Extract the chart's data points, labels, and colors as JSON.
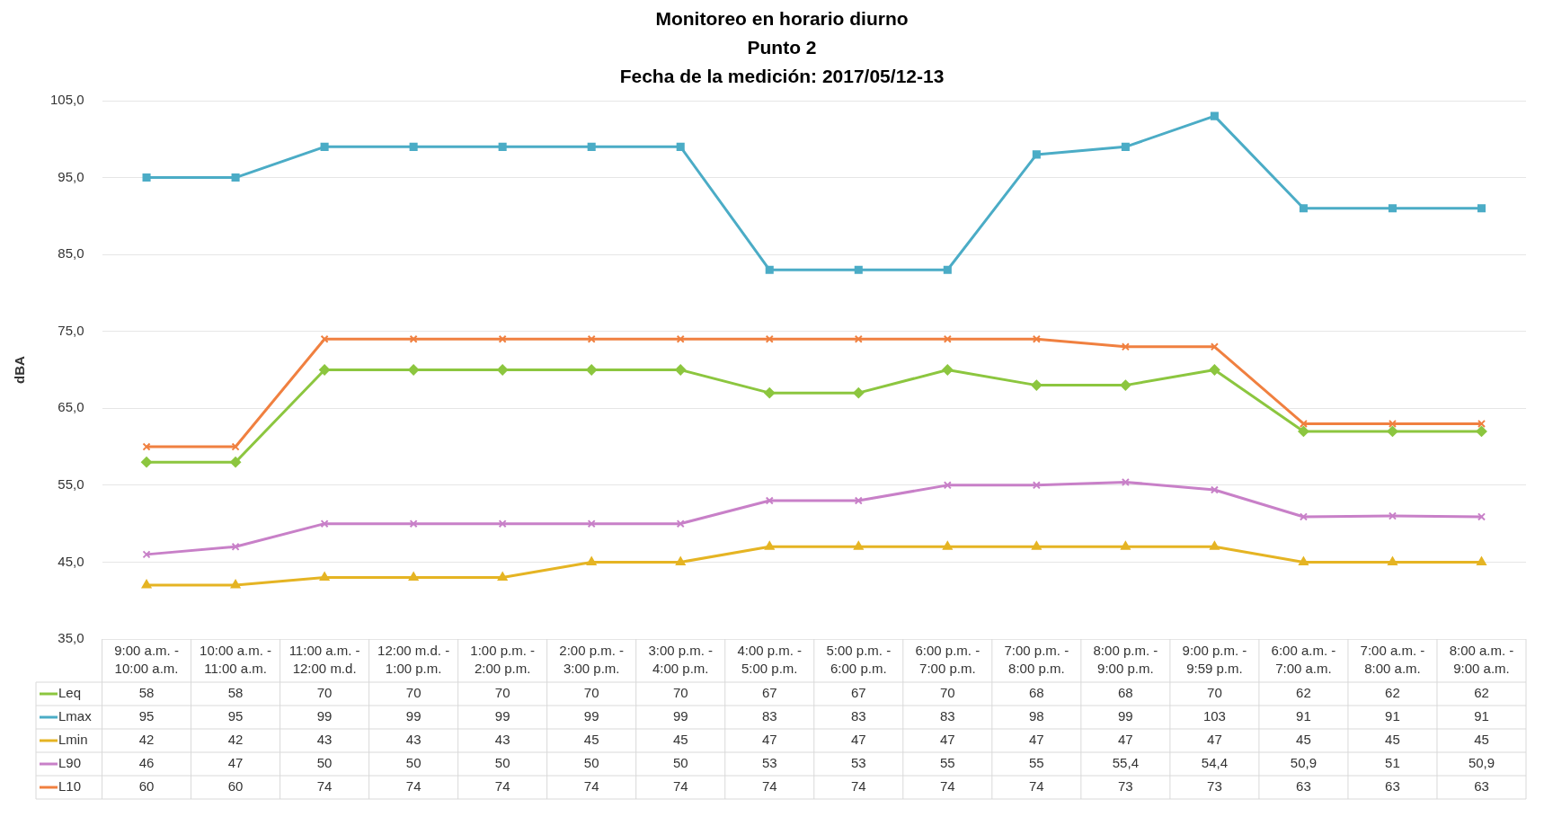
{
  "chart_data": {
    "type": "line",
    "title": [
      "Monitoreo en horario diurno",
      "Punto 2",
      "Fecha de la medición: 2017/05/12-13"
    ],
    "ylabel": "dBA",
    "categories": [
      "9:00 a.m. -\n10:00 a.m.",
      "10:00 a.m. -\n11:00 a.m.",
      "11:00 a.m. -\n12:00 m.d.",
      "12:00 m.d. -\n1:00 p.m.",
      "1:00 p.m. -\n2:00 p.m.",
      "2:00 p.m. -\n3:00 p.m.",
      "3:00 p.m. -\n4:00 p.m.",
      "4:00 p.m. -\n5:00 p.m.",
      "5:00 p.m. -\n6:00 p.m.",
      "6:00 p.m. -\n7:00 p.m.",
      "7:00 p.m. -\n8:00 p.m.",
      "8:00 p.m. -\n9:00 p.m.",
      "9:00 p.m. -\n9:59 p.m.",
      "6:00 a.m. -\n7:00 a.m.",
      "7:00 a.m. -\n8:00 a.m.",
      "8:00 a.m. -\n9:00 a.m."
    ],
    "series": [
      {
        "name": "Leq",
        "color": "#8cc63f",
        "marker": "diamond",
        "values": [
          58,
          58,
          70,
          70,
          70,
          70,
          70,
          67,
          67,
          70,
          68,
          68,
          70,
          62,
          62,
          62
        ],
        "value_labels": [
          "58",
          "58",
          "70",
          "70",
          "70",
          "70",
          "70",
          "67",
          "67",
          "70",
          "68",
          "68",
          "70",
          "62",
          "62",
          "62"
        ]
      },
      {
        "name": "Lmax",
        "color": "#4bacc6",
        "marker": "square",
        "values": [
          95,
          95,
          99,
          99,
          99,
          99,
          99,
          83,
          83,
          83,
          98,
          99,
          103,
          91,
          91,
          91
        ],
        "value_labels": [
          "95",
          "95",
          "99",
          "99",
          "99",
          "99",
          "99",
          "83",
          "83",
          "83",
          "98",
          "99",
          "103",
          "91",
          "91",
          "91"
        ]
      },
      {
        "name": "Lmin",
        "color": "#e5b423",
        "marker": "triangle",
        "values": [
          42,
          42,
          43,
          43,
          43,
          45,
          45,
          47,
          47,
          47,
          47,
          47,
          47,
          45,
          45,
          45
        ],
        "value_labels": [
          "42",
          "42",
          "43",
          "43",
          "43",
          "45",
          "45",
          "47",
          "47",
          "47",
          "47",
          "47",
          "47",
          "45",
          "45",
          "45"
        ]
      },
      {
        "name": "L90",
        "color": "#c880c8",
        "marker": "cross",
        "values": [
          46,
          47,
          50,
          50,
          50,
          50,
          50,
          53,
          53,
          55,
          55,
          55.4,
          54.4,
          50.9,
          51,
          50.9
        ],
        "value_labels": [
          "46",
          "47",
          "50",
          "50",
          "50",
          "50",
          "50",
          "53",
          "53",
          "55",
          "55",
          "55,4",
          "54,4",
          "50,9",
          "51",
          "50,9"
        ]
      },
      {
        "name": "L10",
        "color": "#f08040",
        "marker": "cross",
        "values": [
          60,
          60,
          74,
          74,
          74,
          74,
          74,
          74,
          74,
          74,
          74,
          73,
          73,
          63,
          63,
          63
        ],
        "value_labels": [
          "60",
          "60",
          "74",
          "74",
          "74",
          "74",
          "74",
          "74",
          "74",
          "74",
          "74",
          "73",
          "73",
          "63",
          "63",
          "63"
        ]
      }
    ],
    "ylim": [
      35,
      105
    ],
    "yticks": [
      {
        "value": 35,
        "label": "35,0"
      },
      {
        "value": 45,
        "label": "45,0"
      },
      {
        "value": 55,
        "label": "55,0"
      },
      {
        "value": 65,
        "label": "65,0"
      },
      {
        "value": 75,
        "label": "75,0"
      },
      {
        "value": 85,
        "label": "85,0"
      },
      {
        "value": 95,
        "label": "95,0"
      },
      {
        "value": 105,
        "label": "105,0"
      }
    ],
    "grid": "y",
    "legend": "bottom"
  }
}
